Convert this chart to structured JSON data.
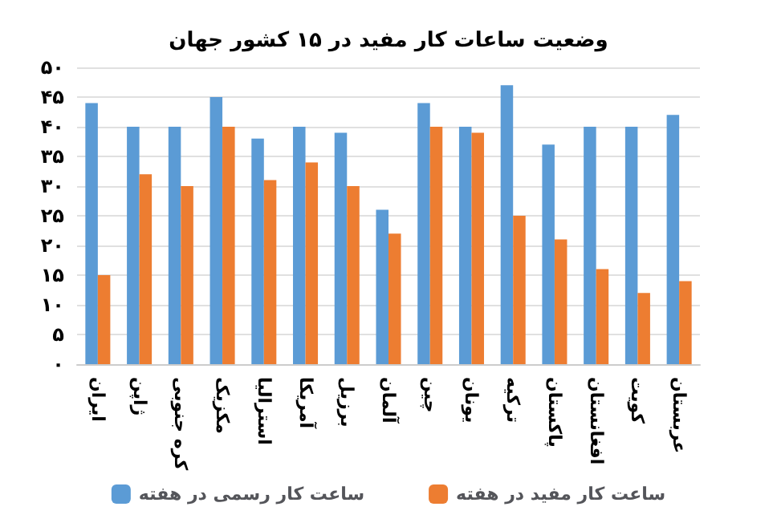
{
  "chart_data": {
    "type": "bar",
    "title": "وضعیت ساعات کار مفید در ۱۵ کشور جهان",
    "categories": [
      "ایران",
      "ژاپن",
      "کره جنوبی",
      "مکزیک",
      "استرالیا",
      "آمریکا",
      "برزیل",
      "آلمان",
      "چین",
      "یونان",
      "ترکیه",
      "پاکستان",
      "افغانستان",
      "کویت",
      "عربستان"
    ],
    "series": [
      {
        "name": "ساعت کار رسمی در هفته",
        "color": "#5b9bd5",
        "values": [
          44,
          40,
          40,
          45,
          38,
          40,
          39,
          26,
          44,
          40,
          47,
          37,
          40,
          40,
          42
        ]
      },
      {
        "name": "ساعت کار مفید در هفته",
        "color": "#ed7d31",
        "values": [
          15,
          32,
          30,
          40,
          31,
          34,
          30,
          22,
          40,
          39,
          25,
          21,
          16,
          12,
          14
        ]
      }
    ],
    "ylim": [
      0,
      50
    ],
    "yticks": [
      {
        "value": 0,
        "label": "۰"
      },
      {
        "value": 5,
        "label": "۵"
      },
      {
        "value": 10,
        "label": "۱۰"
      },
      {
        "value": 15,
        "label": "۱۵"
      },
      {
        "value": 20,
        "label": "۲۰"
      },
      {
        "value": 25,
        "label": "۲۵"
      },
      {
        "value": 30,
        "label": "۳۰"
      },
      {
        "value": 35,
        "label": "۳۵"
      },
      {
        "value": 40,
        "label": "۴۰"
      },
      {
        "value": 45,
        "label": "۴۵"
      },
      {
        "value": 50,
        "label": "۵۰"
      }
    ],
    "grid": "y",
    "legend": "bottom"
  }
}
